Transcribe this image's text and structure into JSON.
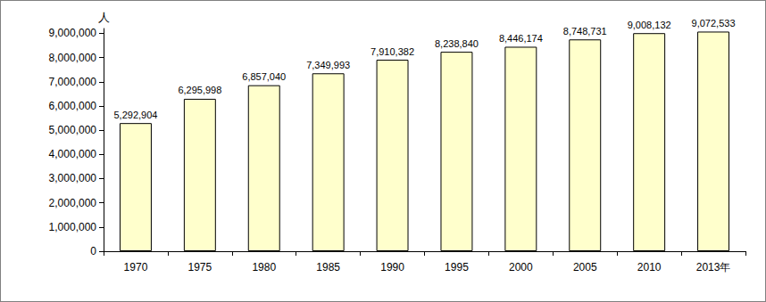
{
  "chart_data": {
    "type": "bar",
    "y_label": "人",
    "categories": [
      "1970",
      "1975",
      "1980",
      "1985",
      "1990",
      "1995",
      "2000",
      "2005",
      "2010",
      "2013年"
    ],
    "values": [
      5292904,
      6295998,
      6857040,
      7349993,
      7910382,
      8238840,
      8446174,
      8748731,
      9008132,
      9072533
    ],
    "value_labels": [
      "5,292,904",
      "6,295,998",
      "6,857,040",
      "7,349,993",
      "7,910,382",
      "8,238,840",
      "8,446,174",
      "8,748,731",
      "9,008,132",
      "9,072,533"
    ],
    "data_labels": true,
    "color": "#ffffcc",
    "ylim": [
      0,
      9200000
    ],
    "yticks": [
      0,
      {
        "value": 1000000,
        "label": "1,000,000"
      },
      {
        "value": 2000000,
        "label": "2,000,000"
      },
      {
        "value": 3000000,
        "label": "3,000,000"
      },
      {
        "value": 4000000,
        "label": "4,000,000"
      },
      {
        "value": 5000000,
        "label": "5,000,000"
      },
      {
        "value": 6000000,
        "label": "6,000,000"
      },
      {
        "value": 7000000,
        "label": "7,000,000"
      },
      {
        "value": 8000000,
        "label": "8,000,000"
      },
      {
        "value": 9000000,
        "label": "9,000,000"
      }
    ],
    "grid": false
  }
}
